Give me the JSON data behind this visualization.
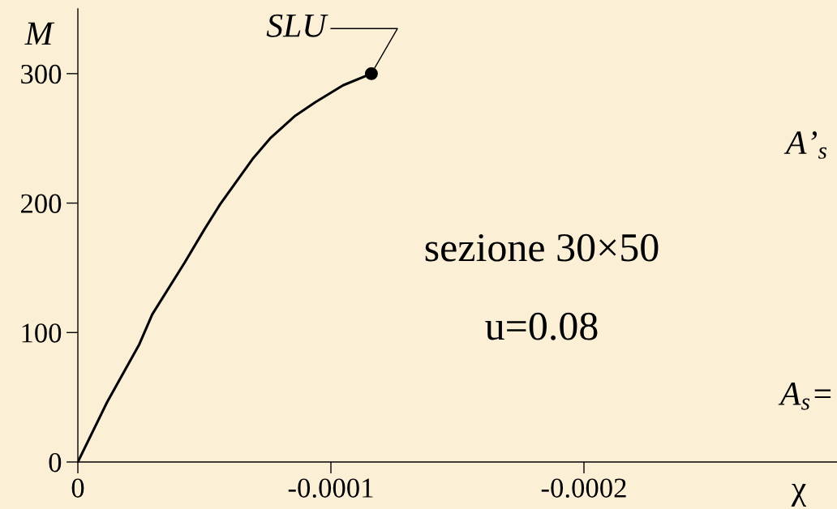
{
  "chart_data": {
    "type": "line",
    "xlabel": "χ",
    "ylabel": "M",
    "x": [
      0,
      -1.15e-05,
      -2.43e-05,
      -2.94e-05,
      -4.22e-05,
      -4.98e-05,
      -5.62e-05,
      -6.9e-05,
      -7.6e-05,
      -8.56e-05,
      -9.39e-05,
      -0.0001048,
      -0.000116
    ],
    "series": [
      {
        "color": "#000000",
        "values": [
          0,
          46,
          91,
          114,
          154,
          179,
          199,
          234,
          250,
          267,
          278,
          291,
          300
        ]
      },
      {
        "type": "scatter",
        "marker": "circle",
        "color": "#000000",
        "x": [
          -0.000116
        ],
        "values": [
          300
        ]
      }
    ],
    "xlim": [
      0,
      -0.0003
    ],
    "ylim": [
      0,
      350
    ],
    "xticks": [
      0,
      -0.0001,
      -0.0002
    ],
    "yticks": [
      0,
      100,
      200,
      300
    ],
    "annotations": [
      {
        "text": "SLU",
        "x": -0.000116,
        "y": 300
      },
      "sezione 30×50",
      "u=0.08",
      "A’$_{s}$",
      "A$_{s}$="
    ],
    "grid": false,
    "legend": false,
    "line_style": "solid"
  }
}
